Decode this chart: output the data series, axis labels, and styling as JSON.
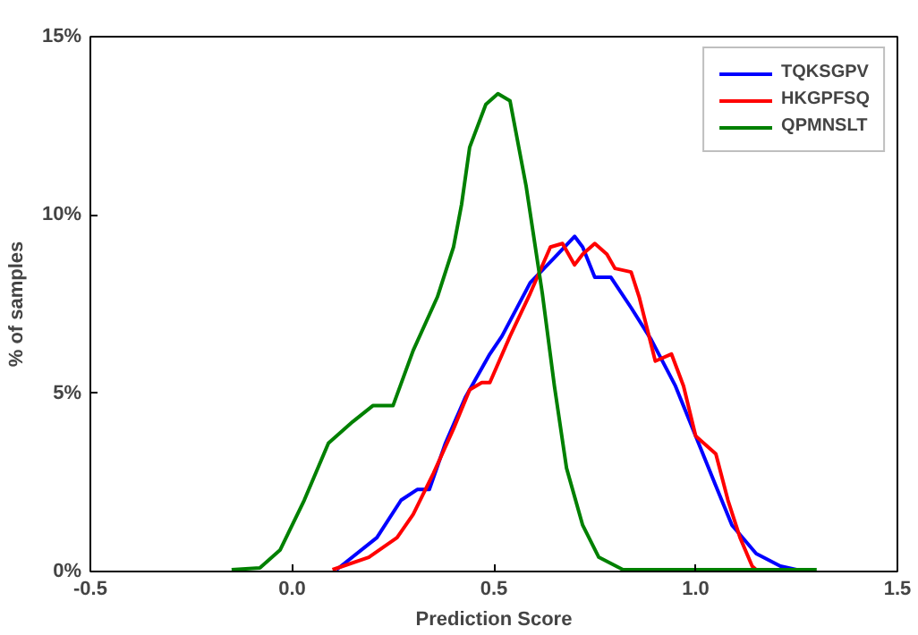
{
  "chart_data": {
    "type": "line",
    "xlabel": "Prediction Score",
    "ylabel": "% of samples",
    "xlim": [
      -0.5,
      1.5
    ],
    "xticks": [
      {
        "value": -0.5,
        "label": "-0.5"
      },
      {
        "value": 0,
        "label": "0.0"
      },
      {
        "value": 0.5,
        "label": "0.5"
      },
      {
        "value": 1,
        "label": "1.0"
      },
      {
        "value": 1.5,
        "label": "1.5"
      }
    ],
    "ylim": [
      0,
      15
    ],
    "yticks": [
      {
        "value": 0,
        "label": "0%"
      },
      {
        "value": 5,
        "label": "5%"
      },
      {
        "value": 10,
        "label": "10%"
      },
      {
        "value": 15,
        "label": "15%"
      }
    ],
    "grid": false,
    "legend": "top right",
    "marker": "none",
    "line_style": "solid",
    "series": [
      {
        "name": "TQKSGPV",
        "color": "#0000ff",
        "x": [
          0.11,
          0.21,
          0.27,
          0.31,
          0.34,
          0.38,
          0.43,
          0.49,
          0.52,
          0.59,
          0.65,
          0.7,
          0.72,
          0.75,
          0.79,
          0.84,
          0.89,
          0.95,
          1.0,
          1.05,
          1.09,
          1.15,
          1.21,
          1.25
        ],
        "values": [
          0.05,
          0.95,
          2.0,
          2.3,
          2.3,
          3.6,
          4.9,
          6.1,
          6.6,
          8.1,
          8.8,
          9.4,
          9.1,
          8.25,
          8.25,
          7.4,
          6.5,
          5.2,
          3.8,
          2.4,
          1.3,
          0.5,
          0.15,
          0.05
        ]
      },
      {
        "name": "HKGPFSQ",
        "color": "#ff0000",
        "x": [
          0.1,
          0.19,
          0.26,
          0.3,
          0.35,
          0.4,
          0.44,
          0.47,
          0.49,
          0.54,
          0.59,
          0.64,
          0.67,
          0.7,
          0.72,
          0.75,
          0.78,
          0.8,
          0.84,
          0.86,
          0.9,
          0.94,
          0.97,
          1.0,
          1.05,
          1.08,
          1.11,
          1.14,
          1.15
        ],
        "values": [
          0.05,
          0.4,
          0.95,
          1.6,
          2.75,
          4.0,
          5.1,
          5.3,
          5.3,
          6.6,
          7.8,
          9.1,
          9.2,
          8.6,
          8.9,
          9.2,
          8.9,
          8.5,
          8.4,
          7.7,
          5.9,
          6.1,
          5.2,
          3.8,
          3.3,
          2.0,
          0.95,
          0.15,
          0.05
        ]
      },
      {
        "name": "QPMNSLT",
        "color": "#008000",
        "x": [
          -0.15,
          -0.08,
          -0.03,
          0.03,
          0.09,
          0.15,
          0.2,
          0.25,
          0.3,
          0.36,
          0.4,
          0.42,
          0.44,
          0.48,
          0.51,
          0.54,
          0.58,
          0.62,
          0.65,
          0.68,
          0.72,
          0.76,
          0.82,
          1.3
        ],
        "values": [
          0.05,
          0.1,
          0.6,
          2.0,
          3.6,
          4.2,
          4.65,
          4.65,
          6.2,
          7.7,
          9.1,
          10.3,
          11.9,
          13.1,
          13.4,
          13.2,
          10.8,
          7.8,
          5.2,
          2.9,
          1.3,
          0.4,
          0.05,
          0.05
        ]
      }
    ]
  }
}
